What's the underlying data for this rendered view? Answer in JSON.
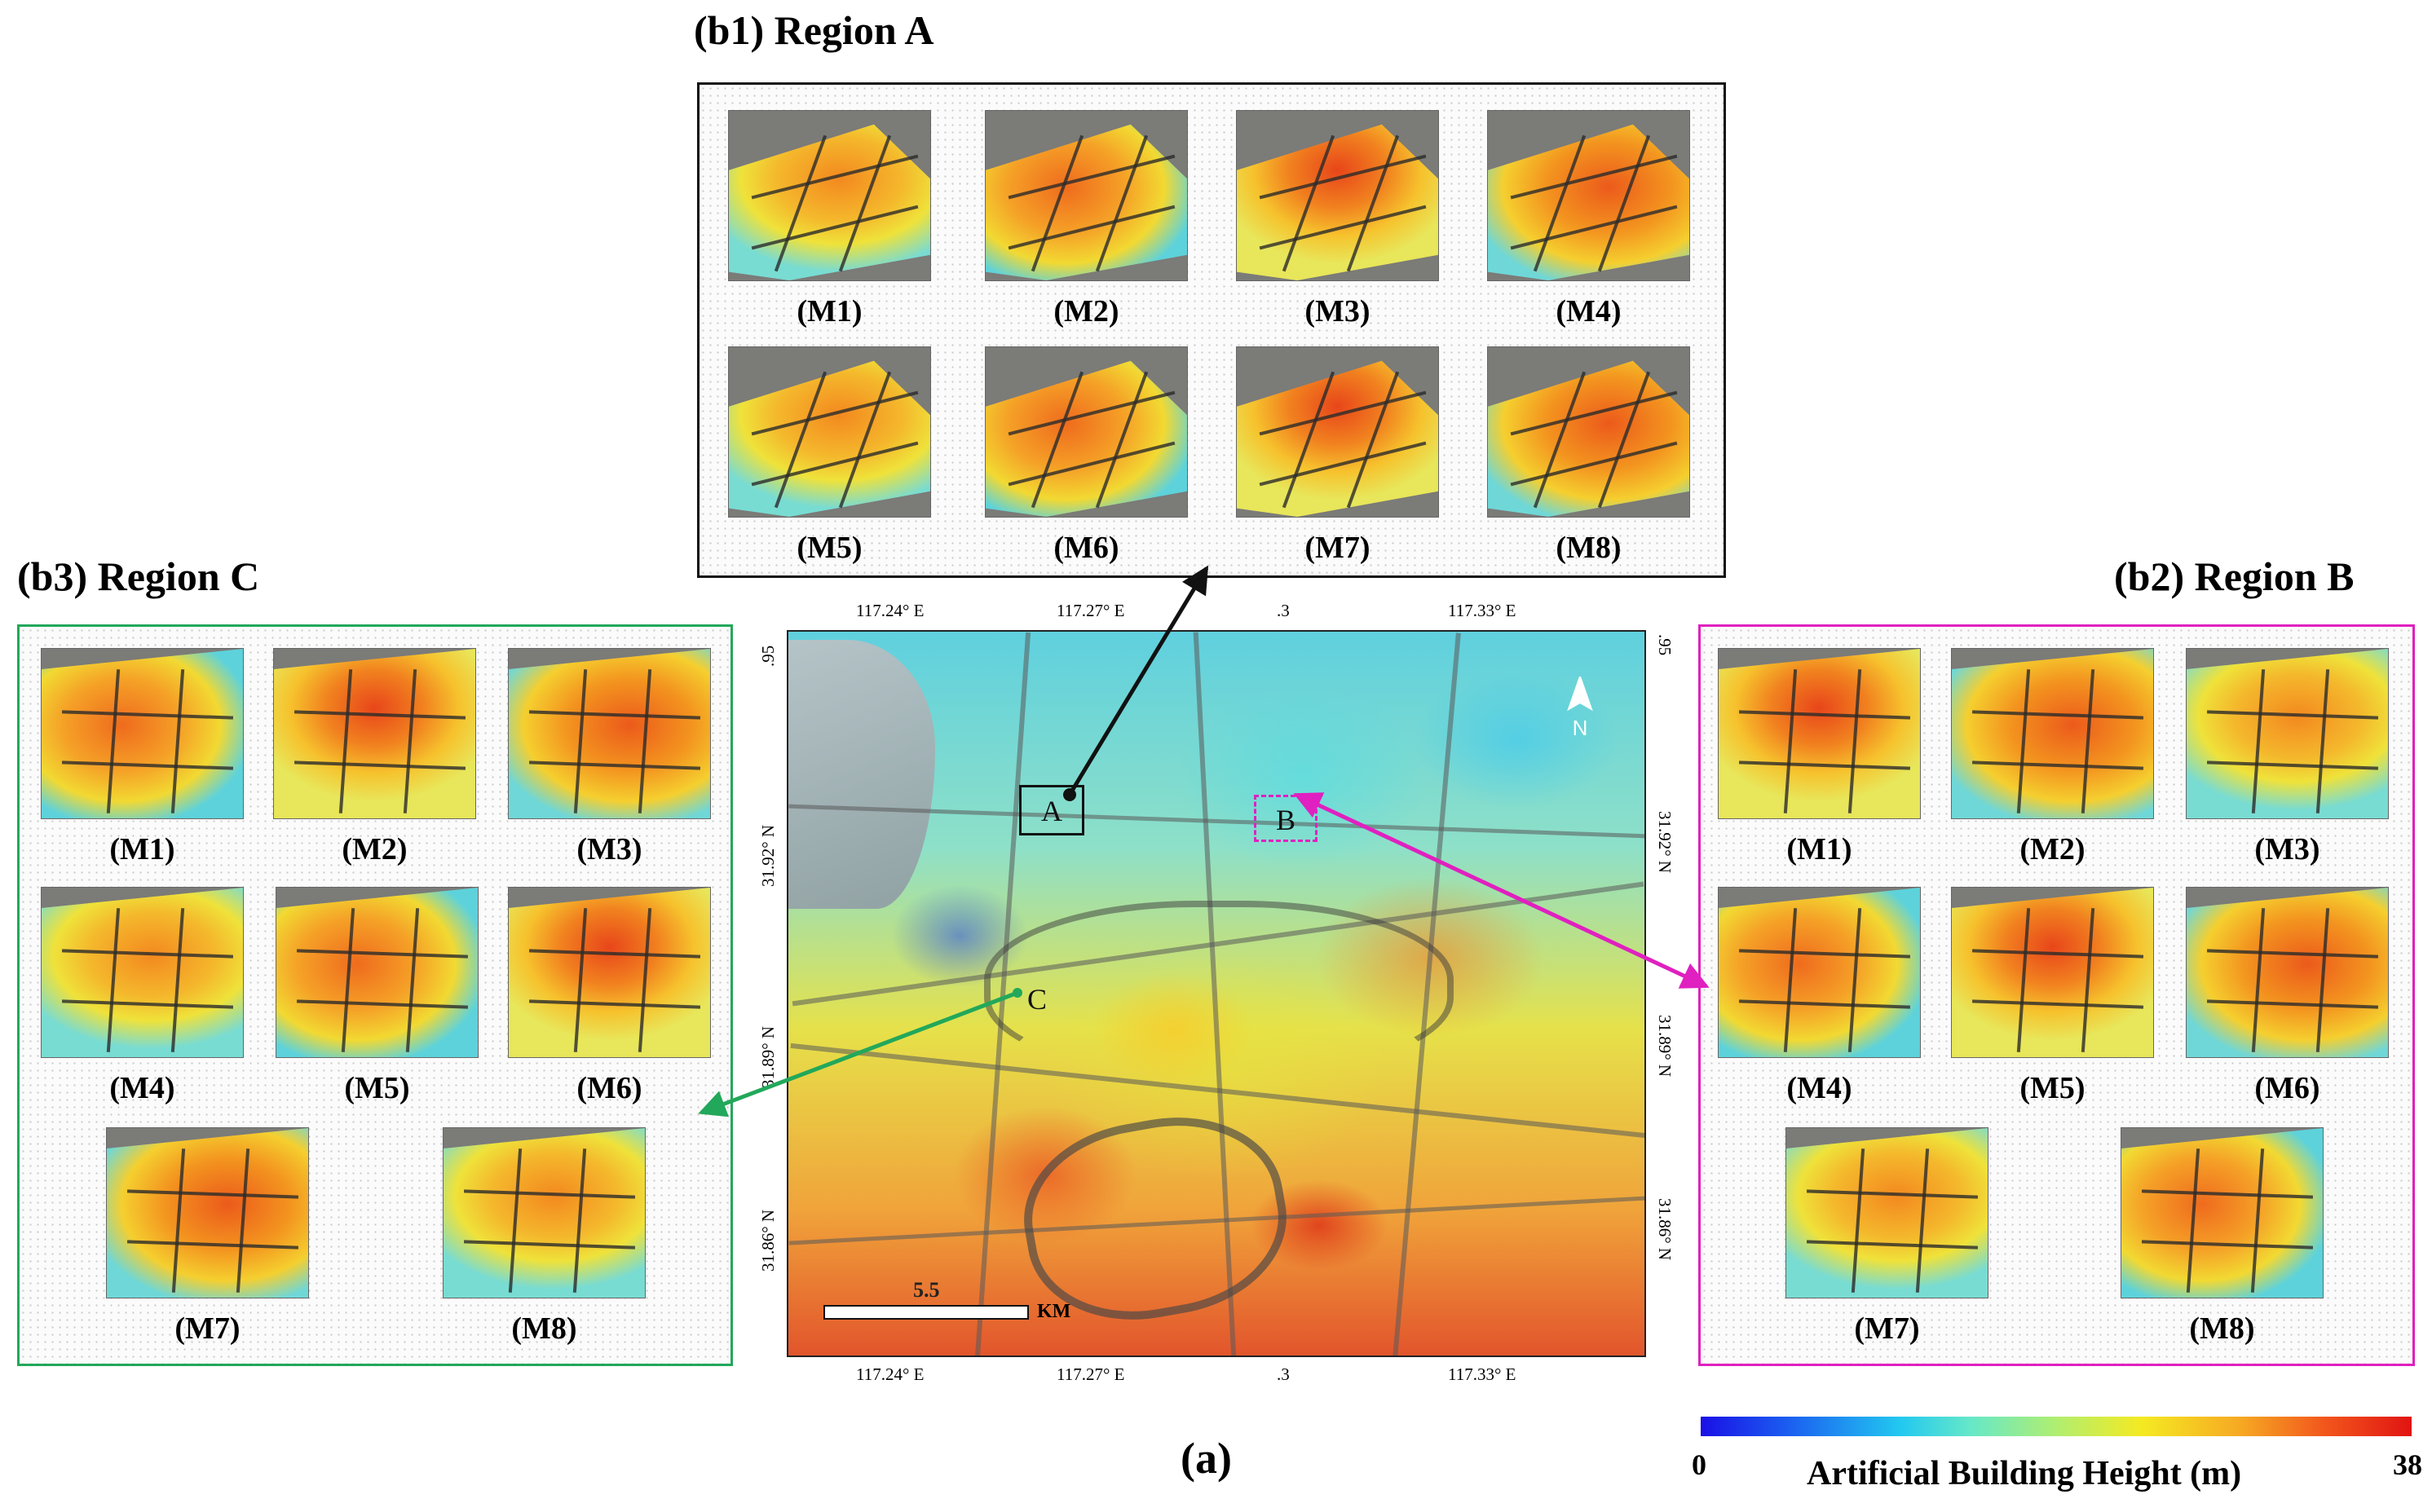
{
  "regions": {
    "a": {
      "prefix": "(",
      "tag": "b1",
      "suffix": ")",
      "name": "Region A",
      "panels": [
        "(M1)",
        "(M2)",
        "(M3)",
        "(M4)",
        "(M5)",
        "(M6)",
        "(M7)",
        "(M8)"
      ],
      "border_color": "#111111"
    },
    "b": {
      "prefix": "(",
      "tag": "b2",
      "suffix": ")",
      "name": "Region B",
      "panels": [
        "(M1)",
        "(M2)",
        "(M3)",
        "(M4)",
        "(M5)",
        "(M6)",
        "(M7)",
        "(M8)"
      ],
      "border_color": "#e020c0"
    },
    "c": {
      "prefix": "(",
      "tag": "b3",
      "suffix": ")",
      "name": "Region C",
      "panels": [
        "(M1)",
        "(M2)",
        "(M3)",
        "(M4)",
        "(M5)",
        "(M6)",
        "(M7)",
        "(M8)"
      ],
      "border_color": "#22a85a"
    }
  },
  "map": {
    "markers": {
      "a": "A",
      "b": "B",
      "c": "C"
    },
    "top_ticks": [
      "117.24° E",
      "117.27° E",
      ".3",
      "117.33° E"
    ],
    "bottom_ticks": [
      "117.24° E",
      "117.27° E",
      ".3",
      "117.33° E"
    ],
    "left_ticks": [
      ".95",
      "31.92° N",
      "31.89° N",
      "31.86° N"
    ],
    "right_ticks": [
      ".95",
      "31.92° N",
      "31.89° N",
      "31.86° N"
    ],
    "scale_value": "5.5",
    "scale_unit": "KM",
    "north_label": "N"
  },
  "caption": "(a)",
  "colorbar": {
    "min": "0",
    "max": "38",
    "label": "Artificial Building Height (m)",
    "colors": [
      "#1a10e6",
      "#22c8f0",
      "#b0ee70",
      "#f5ea22",
      "#f6a823",
      "#e01412"
    ]
  }
}
